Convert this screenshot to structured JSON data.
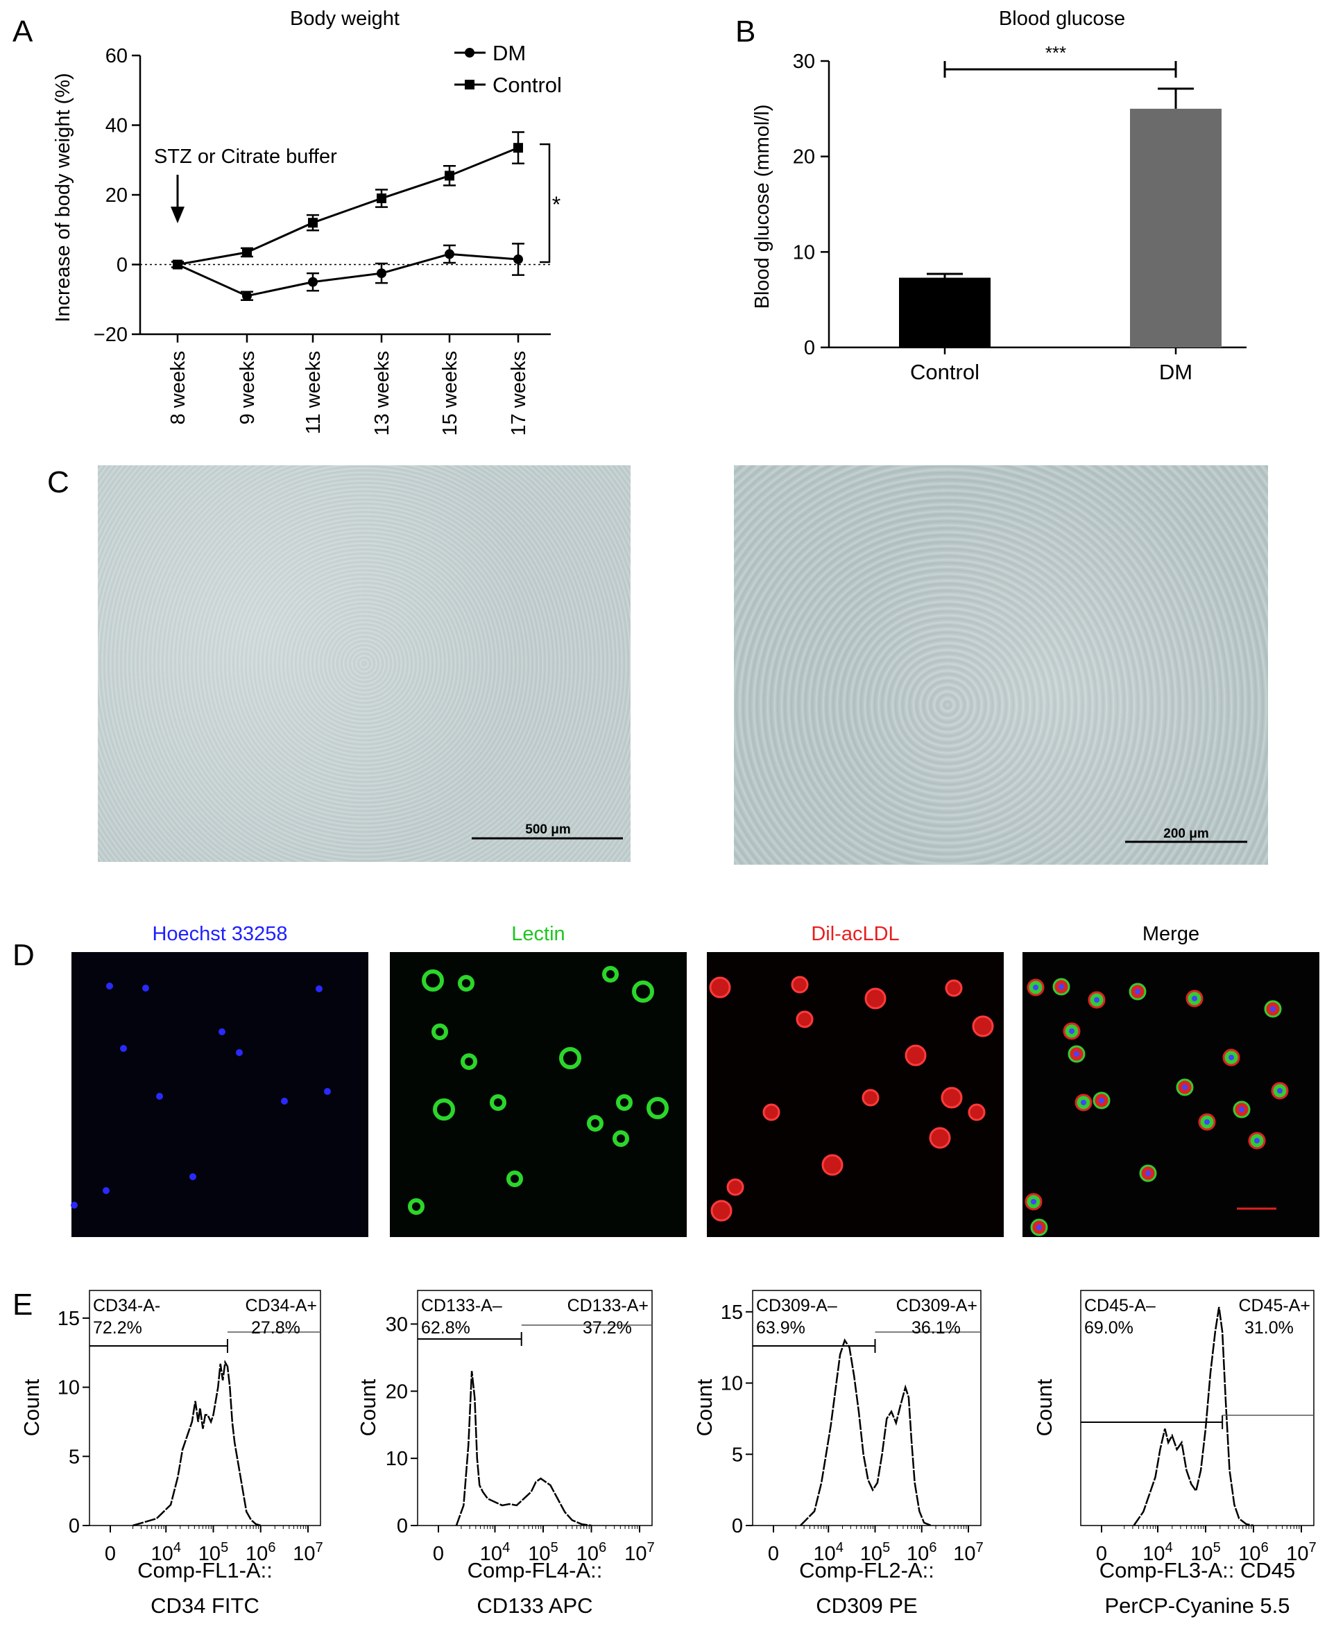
{
  "panel_labels": {
    "a": "A",
    "b": "B",
    "c": "C",
    "d": "D",
    "e": "E"
  },
  "chart_data": [
    {
      "type": "line",
      "title": "Body weight",
      "xlabel": "",
      "ylabel": "Increase of body weight (%)",
      "categories": [
        "8 weeks",
        "9 weeks",
        "11 weeks",
        "13 weeks",
        "15 weeks",
        "17 weeks"
      ],
      "ylim": [
        -20,
        60
      ],
      "yticks": [
        -20,
        0,
        20,
        40,
        60
      ],
      "ytick_labels": [
        "−20",
        "0",
        "20",
        "40",
        "60"
      ],
      "legend_position": "top-right",
      "zero_line": "dotted",
      "series": [
        {
          "name": "DM",
          "marker": "circle",
          "values": [
            0,
            -9,
            -5,
            -2.5,
            3,
            1.5
          ],
          "errors": [
            0.8,
            1.2,
            2.5,
            2.8,
            2.5,
            4.5
          ]
        },
        {
          "name": "Control",
          "marker": "square",
          "values": [
            0,
            3.5,
            12,
            19,
            25.5,
            33.5
          ],
          "errors": [
            0.8,
            1.2,
            2.2,
            2.5,
            2.8,
            4.5
          ]
        }
      ],
      "annotation": "STZ or Citrate buffer",
      "significance": "*"
    },
    {
      "type": "bar",
      "title": "Blood glucose",
      "xlabel": "",
      "ylabel": "Blood glucose (mmol/l)",
      "categories": [
        "Control",
        "DM"
      ],
      "values": [
        7.3,
        25
      ],
      "errors": [
        0.4,
        2.1
      ],
      "colors": [
        "#000000",
        "#6b6b6b"
      ],
      "ylim": [
        0,
        30
      ],
      "yticks": [
        0,
        10,
        20,
        30
      ],
      "significance": "***"
    },
    {
      "type": "area",
      "xlabel_lines": [
        "Comp-FL1-A::",
        "CD34 FITC"
      ],
      "ylabel": "Count",
      "ylim": [
        0,
        17
      ],
      "yticks": [
        0,
        5,
        10,
        15
      ],
      "x_tick_labels": [
        "0",
        "10",
        "10",
        "10",
        "10"
      ],
      "x_tick_exponents": [
        "",
        "4",
        "5",
        "6",
        "7"
      ],
      "gate_neg": {
        "label": "CD34-A-",
        "pct": "72.2%"
      },
      "gate_pos": {
        "label": "CD34-A+",
        "pct": "27.8%"
      },
      "gate_split": 5.3,
      "x": [
        3.3,
        3.8,
        4.1,
        4.25,
        4.35,
        4.45,
        4.55,
        4.62,
        4.68,
        4.72,
        4.78,
        4.83,
        4.88,
        4.95,
        5.0,
        5.05,
        5.1,
        5.15,
        5.2,
        5.25,
        5.3,
        5.35,
        5.4,
        5.45,
        5.5,
        5.55,
        5.6,
        5.65,
        5.7,
        5.8,
        5.9,
        6.0
      ],
      "y": [
        0,
        0.5,
        1.5,
        3.5,
        5.5,
        6.5,
        7.5,
        9,
        7.5,
        8.5,
        7,
        8,
        8,
        7.5,
        8,
        9,
        10,
        11.7,
        10.5,
        11.8,
        11.5,
        10,
        7.5,
        6,
        5,
        4,
        3,
        2,
        1,
        0.4,
        0.1,
        0
      ]
    },
    {
      "type": "area",
      "xlabel_lines": [
        "Comp-FL4-A::",
        "CD133 APC"
      ],
      "ylabel": "Count",
      "ylim": [
        0,
        35
      ],
      "yticks": [
        0,
        10,
        20,
        30
      ],
      "x_tick_labels": [
        "0",
        "10",
        "10",
        "10",
        "10"
      ],
      "x_tick_exponents": [
        "",
        "4",
        "5",
        "6",
        "7"
      ],
      "gate_neg": {
        "label": "CD133-A–",
        "pct": "62.8%"
      },
      "gate_pos": {
        "label": "CD133-A+",
        "pct": "37.2%"
      },
      "gate_split": 4.55,
      "x": [
        3.2,
        3.35,
        3.45,
        3.52,
        3.58,
        3.63,
        3.68,
        3.75,
        3.85,
        4.0,
        4.15,
        4.3,
        4.45,
        4.6,
        4.75,
        4.85,
        4.95,
        5.05,
        5.15,
        5.3,
        5.45,
        5.6,
        5.8,
        6.0
      ],
      "y": [
        0,
        3,
        12,
        23,
        19,
        10,
        6,
        5,
        4,
        3.5,
        3,
        3.2,
        3,
        4,
        5,
        6.5,
        7,
        6.5,
        6,
        4,
        2,
        0.8,
        0.2,
        0
      ]
    },
    {
      "type": "area",
      "xlabel_lines": [
        "Comp-FL2-A::",
        "CD309 PE"
      ],
      "ylabel": "Count",
      "ylim": [
        0,
        16.5
      ],
      "yticks": [
        0,
        5,
        10,
        15
      ],
      "x_tick_labels": [
        "0",
        "10",
        "10",
        "10",
        "10"
      ],
      "x_tick_exponents": [
        "",
        "4",
        "5",
        "6",
        "7"
      ],
      "gate_neg": {
        "label": "CD309-A–",
        "pct": "63.9%"
      },
      "gate_pos": {
        "label": "CD309-A+",
        "pct": "36.1%"
      },
      "gate_split": 5.0,
      "x": [
        3.4,
        3.7,
        3.85,
        3.95,
        4.05,
        4.15,
        4.25,
        4.35,
        4.45,
        4.55,
        4.65,
        4.75,
        4.85,
        4.95,
        5.05,
        5.15,
        5.25,
        5.35,
        5.45,
        5.55,
        5.65,
        5.72,
        5.78,
        5.85,
        5.95,
        6.05,
        6.2
      ],
      "y": [
        0,
        1,
        3,
        5,
        7,
        9.5,
        12,
        13,
        12.5,
        10.5,
        8,
        5,
        3.2,
        2.5,
        3,
        5,
        7.5,
        8,
        7.2,
        8.5,
        9.7,
        9,
        6,
        3,
        1,
        0.2,
        0
      ]
    },
    {
      "type": "area",
      "xlabel_lines": [
        "Comp-FL3-A:: CD45",
        "PerCP-Cyanine 5.5"
      ],
      "ylabel": "Count",
      "ylim": [
        0,
        17
      ],
      "yticks": [],
      "x_tick_labels": [
        "0",
        "10",
        "10",
        "10",
        "10"
      ],
      "x_tick_exponents": [
        "",
        "4",
        "5",
        "6",
        "7"
      ],
      "gate_neg": {
        "label": "CD45-A–",
        "pct": "69.0%"
      },
      "gate_pos": {
        "label": "CD45-A+",
        "pct": "31.0%"
      },
      "gate_split": 5.35,
      "x": [
        3.5,
        3.7,
        3.85,
        3.95,
        4.05,
        4.15,
        4.22,
        4.3,
        4.4,
        4.5,
        4.6,
        4.7,
        4.8,
        4.9,
        5.0,
        5.1,
        5.2,
        5.28,
        5.35,
        5.42,
        5.5,
        5.6,
        5.7,
        5.85,
        6.0
      ],
      "y": [
        0,
        1,
        2.5,
        3.5,
        5.5,
        7,
        6,
        6.5,
        5.5,
        6,
        4,
        3,
        2.5,
        4,
        7,
        11,
        14,
        15.8,
        14,
        9,
        4,
        1.5,
        0.5,
        0.1,
        0
      ]
    }
  ],
  "micrographs": {
    "scale_bar_left": "500 μm",
    "scale_bar_right": "200 μm",
    "fluorescence_titles": [
      "Hoechst 33258",
      "Lectin",
      "Dil-acLDL",
      "Merge"
    ],
    "fluorescence_title_colors": [
      "#1f1fff",
      "#1ec51e",
      "#e81e1e",
      "#000000"
    ]
  }
}
